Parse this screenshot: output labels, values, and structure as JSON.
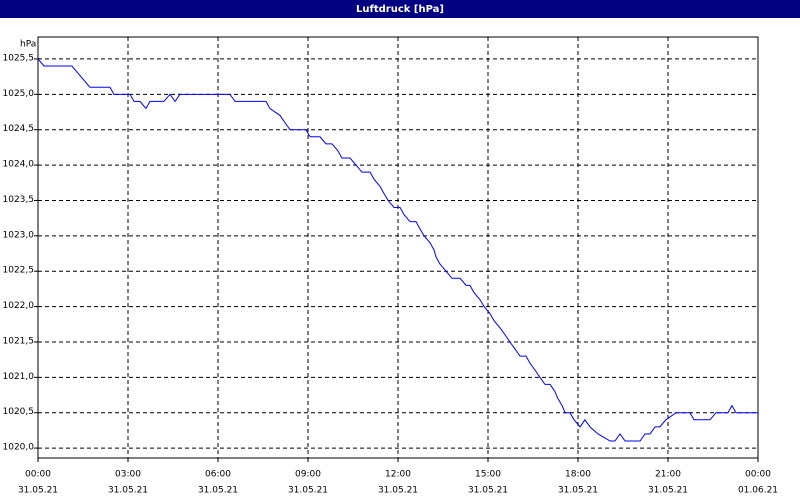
{
  "chart_data": {
    "type": "line",
    "title": "Luftdruck [hPa]",
    "y_label": "hPa",
    "x": [
      0,
      0.2,
      1.13,
      1.33,
      1.53,
      1.73,
      2.4,
      2.53,
      3.07,
      3.2,
      3.4,
      3.6,
      3.73,
      4.2,
      4.4,
      4.57,
      4.73,
      6.4,
      6.57,
      7.6,
      7.73,
      8.07,
      8.23,
      8.4,
      8.93,
      9.07,
      9.4,
      9.6,
      9.8,
      10,
      10.13,
      10.4,
      10.6,
      10.8,
      11.07,
      11.2,
      11.4,
      11.53,
      11.67,
      11.87,
      12.07,
      12.2,
      12.4,
      12.6,
      12.73,
      12.87,
      13.07,
      13.2,
      13.27,
      13.4,
      13.6,
      13.8,
      14.07,
      14.27,
      14.4,
      14.53,
      14.73,
      14.87,
      15.07,
      15.2,
      15.4,
      15.57,
      15.73,
      15.9,
      16.07,
      16.27,
      16.4,
      16.57,
      16.73,
      16.9,
      17.07,
      17.23,
      17.33,
      17.47,
      17.57,
      17.73,
      17.87,
      18.07,
      18.23,
      18.4,
      18.67,
      19.07,
      19.23,
      19.4,
      19.57,
      20.07,
      20.23,
      20.4,
      20.57,
      20.73,
      20.93,
      21.27,
      21.73,
      21.87,
      22.4,
      22.6,
      23,
      23.13,
      23.27,
      24
    ],
    "series": [
      {
        "color": "#0000ff",
        "values": [
          1025.5,
          1025.4,
          1025.4,
          1025.3,
          1025.2,
          1025.1,
          1025.1,
          1025.0,
          1025.0,
          1024.9,
          1024.9,
          1024.8,
          1024.9,
          1024.9,
          1025.0,
          1024.9,
          1025.0,
          1025.0,
          1024.9,
          1024.9,
          1024.8,
          1024.7,
          1024.6,
          1024.5,
          1024.5,
          1024.4,
          1024.4,
          1024.3,
          1024.3,
          1024.2,
          1024.1,
          1024.1,
          1024.0,
          1023.9,
          1023.9,
          1023.8,
          1023.7,
          1023.6,
          1023.5,
          1023.4,
          1023.4,
          1023.3,
          1023.2,
          1023.2,
          1023.1,
          1023.0,
          1022.9,
          1022.8,
          1022.7,
          1022.6,
          1022.5,
          1022.4,
          1022.4,
          1022.3,
          1022.3,
          1022.2,
          1022.1,
          1022.0,
          1021.9,
          1021.8,
          1021.7,
          1021.6,
          1021.5,
          1021.4,
          1021.3,
          1021.3,
          1021.2,
          1021.1,
          1021.0,
          1020.9,
          1020.9,
          1020.8,
          1020.7,
          1020.6,
          1020.5,
          1020.5,
          1020.4,
          1020.3,
          1020.4,
          1020.3,
          1020.2,
          1020.1,
          1020.1,
          1020.2,
          1020.1,
          1020.1,
          1020.2,
          1020.2,
          1020.3,
          1020.3,
          1020.4,
          1020.5,
          1020.5,
          1020.4,
          1020.4,
          1020.5,
          1020.5,
          1020.6,
          1020.5,
          1020.5
        ]
      }
    ],
    "xlim": [
      0,
      24
    ],
    "xticks": [
      {
        "value": 0,
        "label": "00:00"
      },
      {
        "value": 3,
        "label": "03:00"
      },
      {
        "value": 6,
        "label": "06:00"
      },
      {
        "value": 9,
        "label": "09:00"
      },
      {
        "value": 12,
        "label": "12:00"
      },
      {
        "value": 15,
        "label": "15:00"
      },
      {
        "value": 18,
        "label": "18:00"
      },
      {
        "value": 21,
        "label": "21:00"
      },
      {
        "value": 24,
        "label": "00:00"
      }
    ],
    "xtick_dates": [
      "31.05.21",
      "31.05.21",
      "31.05.21",
      "31.05.21",
      "31.05.21",
      "31.05.21",
      "31.05.21",
      "31.05.21",
      "01.06.21"
    ],
    "ylim": [
      1019.86,
      1025.81
    ],
    "yticks": [
      {
        "value": 1020.0,
        "label": "1020,0"
      },
      {
        "value": 1020.5,
        "label": "1020,5"
      },
      {
        "value": 1021.0,
        "label": "1021,0"
      },
      {
        "value": 1021.5,
        "label": "1021,5"
      },
      {
        "value": 1022.0,
        "label": "1022,0"
      },
      {
        "value": 1022.5,
        "label": "1022,5"
      },
      {
        "value": 1023.0,
        "label": "1023,0"
      },
      {
        "value": 1023.5,
        "label": "1023,5"
      },
      {
        "value": 1024.0,
        "label": "1024,0"
      },
      {
        "value": 1024.5,
        "label": "1024,5"
      },
      {
        "value": 1025.0,
        "label": "1025,0"
      },
      {
        "value": 1025.5,
        "label": "1025,5"
      }
    ],
    "grid": true
  }
}
